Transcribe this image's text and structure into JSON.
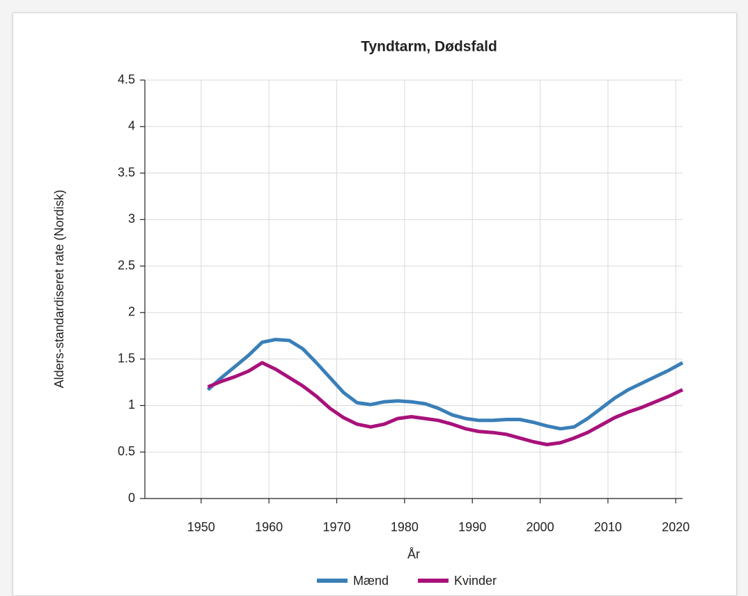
{
  "chart_data": {
    "type": "line",
    "title": "Tyndtarm, Dødsfald",
    "x_label": "År",
    "y_label": "Alders-standardiseret rate (Nordisk)",
    "x": [
      1951,
      1953,
      1955,
      1957,
      1959,
      1961,
      1963,
      1965,
      1967,
      1969,
      1971,
      1973,
      1975,
      1977,
      1979,
      1981,
      1983,
      1985,
      1987,
      1989,
      1991,
      1993,
      1995,
      1997,
      1999,
      2001,
      2003,
      2005,
      2007,
      2009,
      2011,
      2013,
      2015,
      2017,
      2019,
      2021
    ],
    "series": [
      {
        "name": "Mænd",
        "color": "#3a7fb8",
        "values": [
          1.17,
          1.3,
          1.42,
          1.54,
          1.68,
          1.71,
          1.7,
          1.61,
          1.46,
          1.3,
          1.14,
          1.03,
          1.01,
          1.04,
          1.05,
          1.04,
          1.02,
          0.97,
          0.9,
          0.86,
          0.84,
          0.84,
          0.85,
          0.85,
          0.82,
          0.78,
          0.75,
          0.77,
          0.86,
          0.97,
          1.08,
          1.17,
          1.24,
          1.31,
          1.38,
          1.46
        ]
      },
      {
        "name": "Kvinder",
        "color": "#a8117a",
        "values": [
          1.2,
          1.26,
          1.31,
          1.37,
          1.46,
          1.39,
          1.3,
          1.21,
          1.1,
          0.97,
          0.87,
          0.8,
          0.77,
          0.8,
          0.86,
          0.88,
          0.86,
          0.84,
          0.8,
          0.75,
          0.72,
          0.71,
          0.69,
          0.65,
          0.61,
          0.58,
          0.6,
          0.65,
          0.71,
          0.79,
          0.87,
          0.93,
          0.98,
          1.04,
          1.1,
          1.17
        ]
      }
    ],
    "xlim": [
      1941.7,
      2021
    ],
    "xticks": [
      1950,
      1960,
      1970,
      1980,
      1990,
      2000,
      2010,
      2020
    ],
    "ylim": [
      0,
      4.5
    ],
    "yticks": [
      0,
      0.5,
      1,
      1.5,
      2,
      2.5,
      3,
      3.5,
      4,
      4.5
    ],
    "grid": true,
    "legend": "bottom"
  }
}
